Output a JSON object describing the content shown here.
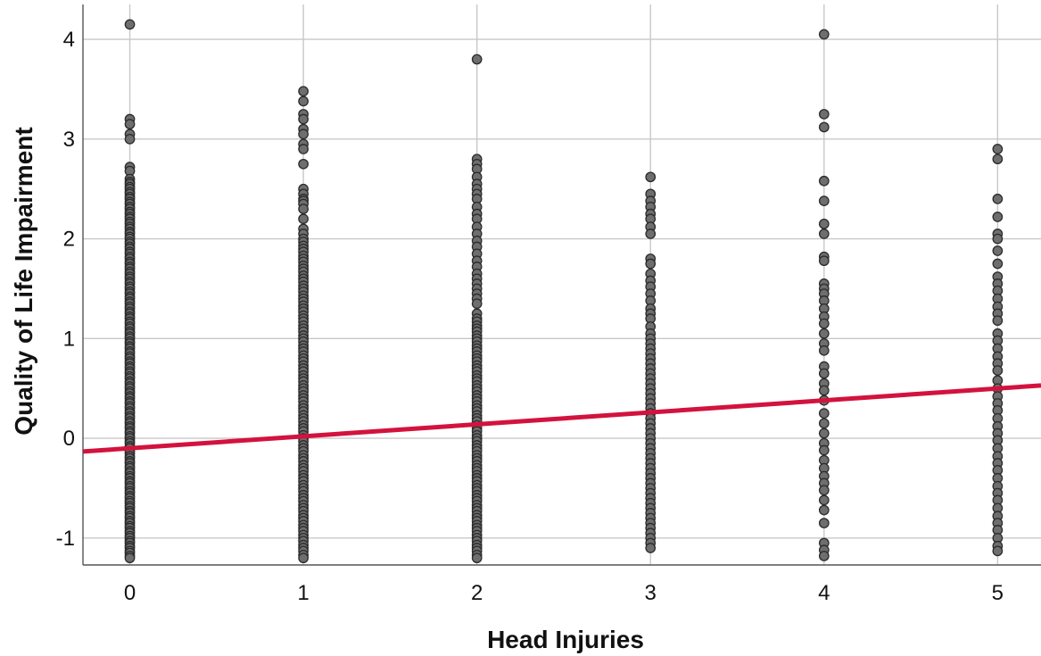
{
  "chart_data": {
    "type": "scatter",
    "title": "",
    "xlabel": "Head Injuries",
    "ylabel": "Quality of Life Impairment",
    "xlim": [
      -0.27,
      5.25
    ],
    "ylim": [
      -1.27,
      4.35
    ],
    "x_ticks": [
      0,
      1,
      2,
      3,
      4,
      5
    ],
    "y_ticks": [
      -1,
      0,
      1,
      2,
      3,
      4
    ],
    "grid": true,
    "legend": "none",
    "point_color": "#6e6e6e",
    "point_edge_color": "#2b2b2b",
    "fit_line_color": "#d3123e",
    "fit_line": {
      "intercept": -0.1,
      "slope": 0.12
    },
    "series": [
      {
        "x": 0,
        "y": [
          4.15,
          3.2,
          3.15,
          3.05,
          3.0,
          2.72,
          2.68,
          2.6,
          2.57,
          2.55,
          2.52,
          2.5,
          2.47,
          2.45,
          2.42,
          2.4,
          2.37,
          2.35,
          2.32,
          2.3,
          2.27,
          2.25,
          2.22,
          2.2,
          2.17,
          2.15,
          2.12,
          2.1,
          2.07,
          2.05,
          2.02,
          2.0,
          1.97,
          1.95,
          1.92,
          1.9,
          1.87,
          1.85,
          1.82,
          1.8,
          1.77,
          1.75,
          1.72,
          1.7,
          1.67,
          1.65,
          1.62,
          1.6,
          1.57,
          1.55,
          1.52,
          1.5,
          1.47,
          1.45,
          1.42,
          1.4,
          1.37,
          1.35,
          1.32,
          1.3,
          1.27,
          1.25,
          1.22,
          1.2,
          1.17,
          1.15,
          1.12,
          1.1,
          1.07,
          1.05,
          1.02,
          1.0,
          0.97,
          0.95,
          0.92,
          0.9,
          0.87,
          0.85,
          0.82,
          0.8,
          0.77,
          0.75,
          0.72,
          0.7,
          0.67,
          0.65,
          0.62,
          0.6,
          0.57,
          0.55,
          0.52,
          0.5,
          0.47,
          0.45,
          0.42,
          0.4,
          0.37,
          0.35,
          0.32,
          0.3,
          0.27,
          0.25,
          0.22,
          0.2,
          0.17,
          0.15,
          0.12,
          0.1,
          0.07,
          0.05,
          0.02,
          0.0,
          -0.03,
          -0.05,
          -0.08,
          -0.1,
          -0.13,
          -0.15,
          -0.18,
          -0.2,
          -0.23,
          -0.25,
          -0.28,
          -0.3,
          -0.33,
          -0.35,
          -0.38,
          -0.4,
          -0.43,
          -0.45,
          -0.48,
          -0.5,
          -0.53,
          -0.55,
          -0.58,
          -0.6,
          -0.63,
          -0.65,
          -0.68,
          -0.7,
          -0.73,
          -0.75,
          -0.78,
          -0.8,
          -0.83,
          -0.85,
          -0.88,
          -0.9,
          -0.93,
          -0.95,
          -0.98,
          -1.0,
          -1.03,
          -1.05,
          -1.08,
          -1.1,
          -1.13,
          -1.15,
          -1.18,
          -1.2
        ]
      },
      {
        "x": 1,
        "y": [
          3.48,
          3.38,
          3.25,
          3.2,
          3.1,
          3.05,
          2.95,
          2.9,
          2.75,
          2.5,
          2.45,
          2.4,
          2.38,
          2.35,
          2.3,
          2.2,
          2.1,
          2.05,
          2.0,
          1.97,
          1.93,
          1.9,
          1.87,
          1.83,
          1.8,
          1.77,
          1.73,
          1.7,
          1.67,
          1.63,
          1.6,
          1.57,
          1.53,
          1.5,
          1.47,
          1.43,
          1.4,
          1.37,
          1.33,
          1.3,
          1.27,
          1.23,
          1.2,
          1.17,
          1.13,
          1.1,
          1.07,
          1.03,
          1.0,
          0.97,
          0.93,
          0.9,
          0.87,
          0.83,
          0.8,
          0.77,
          0.73,
          0.7,
          0.67,
          0.63,
          0.6,
          0.57,
          0.53,
          0.5,
          0.47,
          0.43,
          0.4,
          0.37,
          0.33,
          0.3,
          0.27,
          0.23,
          0.2,
          0.17,
          0.13,
          0.1,
          0.07,
          0.03,
          0.0,
          -0.03,
          -0.07,
          -0.1,
          -0.13,
          -0.17,
          -0.2,
          -0.23,
          -0.27,
          -0.3,
          -0.33,
          -0.37,
          -0.4,
          -0.43,
          -0.47,
          -0.5,
          -0.53,
          -0.57,
          -0.6,
          -0.63,
          -0.67,
          -0.7,
          -0.73,
          -0.77,
          -0.8,
          -0.83,
          -0.87,
          -0.9,
          -0.93,
          -0.97,
          -1.0,
          -1.03,
          -1.07,
          -1.1,
          -1.13,
          -1.17,
          -1.2
        ]
      },
      {
        "x": 2,
        "y": [
          3.8,
          2.8,
          2.75,
          2.7,
          2.62,
          2.55,
          2.5,
          2.45,
          2.4,
          2.32,
          2.25,
          2.2,
          2.12,
          2.05,
          1.98,
          1.92,
          1.85,
          1.78,
          1.72,
          1.65,
          1.6,
          1.55,
          1.5,
          1.45,
          1.4,
          1.35,
          1.25,
          1.2,
          1.17,
          1.13,
          1.1,
          1.07,
          1.03,
          1.0,
          0.97,
          0.93,
          0.9,
          0.87,
          0.83,
          0.8,
          0.77,
          0.73,
          0.7,
          0.67,
          0.63,
          0.6,
          0.57,
          0.53,
          0.5,
          0.47,
          0.43,
          0.4,
          0.37,
          0.33,
          0.3,
          0.27,
          0.23,
          0.2,
          0.17,
          0.13,
          0.1,
          0.07,
          0.03,
          0.0,
          -0.03,
          -0.07,
          -0.1,
          -0.13,
          -0.17,
          -0.2,
          -0.23,
          -0.27,
          -0.3,
          -0.33,
          -0.37,
          -0.4,
          -0.43,
          -0.47,
          -0.5,
          -0.53,
          -0.57,
          -0.6,
          -0.63,
          -0.67,
          -0.7,
          -0.73,
          -0.77,
          -0.8,
          -0.83,
          -0.87,
          -0.9,
          -0.93,
          -0.97,
          -1.0,
          -1.03,
          -1.07,
          -1.1,
          -1.13,
          -1.17,
          -1.2
        ]
      },
      {
        "x": 3,
        "y": [
          2.62,
          2.45,
          2.38,
          2.32,
          2.25,
          2.2,
          2.12,
          2.05,
          1.8,
          1.75,
          1.65,
          1.58,
          1.52,
          1.45,
          1.38,
          1.3,
          1.25,
          1.2,
          1.12,
          1.05,
          1.0,
          0.95,
          0.9,
          0.85,
          0.8,
          0.75,
          0.7,
          0.65,
          0.6,
          0.55,
          0.5,
          0.45,
          0.4,
          0.35,
          0.3,
          0.25,
          0.2,
          0.15,
          0.1,
          0.05,
          0.0,
          -0.05,
          -0.1,
          -0.15,
          -0.2,
          -0.25,
          -0.3,
          -0.35,
          -0.4,
          -0.45,
          -0.5,
          -0.55,
          -0.6,
          -0.65,
          -0.7,
          -0.75,
          -0.8,
          -0.85,
          -0.9,
          -0.95,
          -1.0,
          -1.05,
          -1.1
        ]
      },
      {
        "x": 4,
        "y": [
          4.05,
          3.25,
          3.12,
          2.58,
          2.38,
          2.15,
          2.05,
          1.82,
          1.78,
          1.55,
          1.5,
          1.45,
          1.38,
          1.3,
          1.22,
          1.15,
          1.05,
          0.95,
          0.88,
          0.72,
          0.65,
          0.55,
          0.48,
          0.38,
          0.25,
          0.15,
          0.05,
          -0.05,
          -0.12,
          -0.22,
          -0.3,
          -0.38,
          -0.45,
          -0.52,
          -0.62,
          -0.72,
          -0.85,
          -1.05,
          -1.12,
          -1.18
        ]
      },
      {
        "x": 5,
        "y": [
          2.9,
          2.8,
          2.4,
          2.22,
          2.05,
          2.0,
          1.88,
          1.75,
          1.62,
          1.55,
          1.48,
          1.4,
          1.32,
          1.25,
          1.18,
          1.05,
          0.98,
          0.9,
          0.82,
          0.75,
          0.68,
          0.58,
          0.5,
          0.42,
          0.35,
          0.28,
          0.2,
          0.12,
          0.05,
          -0.02,
          -0.1,
          -0.18,
          -0.25,
          -0.32,
          -0.4,
          -0.48,
          -0.55,
          -0.62,
          -0.7,
          -0.78,
          -0.85,
          -0.92,
          -1.0,
          -1.08,
          -1.13
        ]
      }
    ]
  }
}
